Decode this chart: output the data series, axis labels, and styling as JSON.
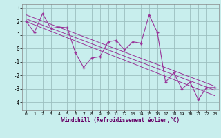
{
  "x": [
    0,
    1,
    2,
    3,
    4,
    5,
    6,
    7,
    8,
    9,
    10,
    11,
    12,
    13,
    14,
    15,
    16,
    17,
    18,
    19,
    20,
    21,
    22,
    23
  ],
  "y_main": [
    2.0,
    1.2,
    2.6,
    1.5,
    1.6,
    1.55,
    -0.3,
    -1.4,
    -0.7,
    -0.6,
    0.5,
    0.6,
    -0.1,
    0.5,
    0.4,
    2.5,
    1.2,
    -2.5,
    -1.8,
    -3.0,
    -2.5,
    -3.8,
    -2.9,
    -2.9
  ],
  "trend1_ends": [
    2.0,
    -3.5
  ],
  "trend2_ends": [
    2.5,
    -2.8
  ],
  "trend3_ends": [
    2.2,
    -3.1
  ],
  "trend_x": [
    0,
    23
  ],
  "line_color": "#993399",
  "bg_color": "#c8eeed",
  "grid_color": "#9bbfbf",
  "xlabel": "Windchill (Refroidissement éolien,°C)",
  "yticks": [
    -4,
    -3,
    -2,
    -1,
    0,
    1,
    2,
    3
  ],
  "xticks": [
    0,
    1,
    2,
    3,
    4,
    5,
    6,
    7,
    8,
    9,
    10,
    11,
    12,
    13,
    14,
    15,
    16,
    17,
    18,
    19,
    20,
    21,
    22,
    23
  ],
  "ylim": [
    -4.6,
    3.3
  ],
  "xlim": [
    -0.5,
    23.5
  ],
  "marker": "+"
}
